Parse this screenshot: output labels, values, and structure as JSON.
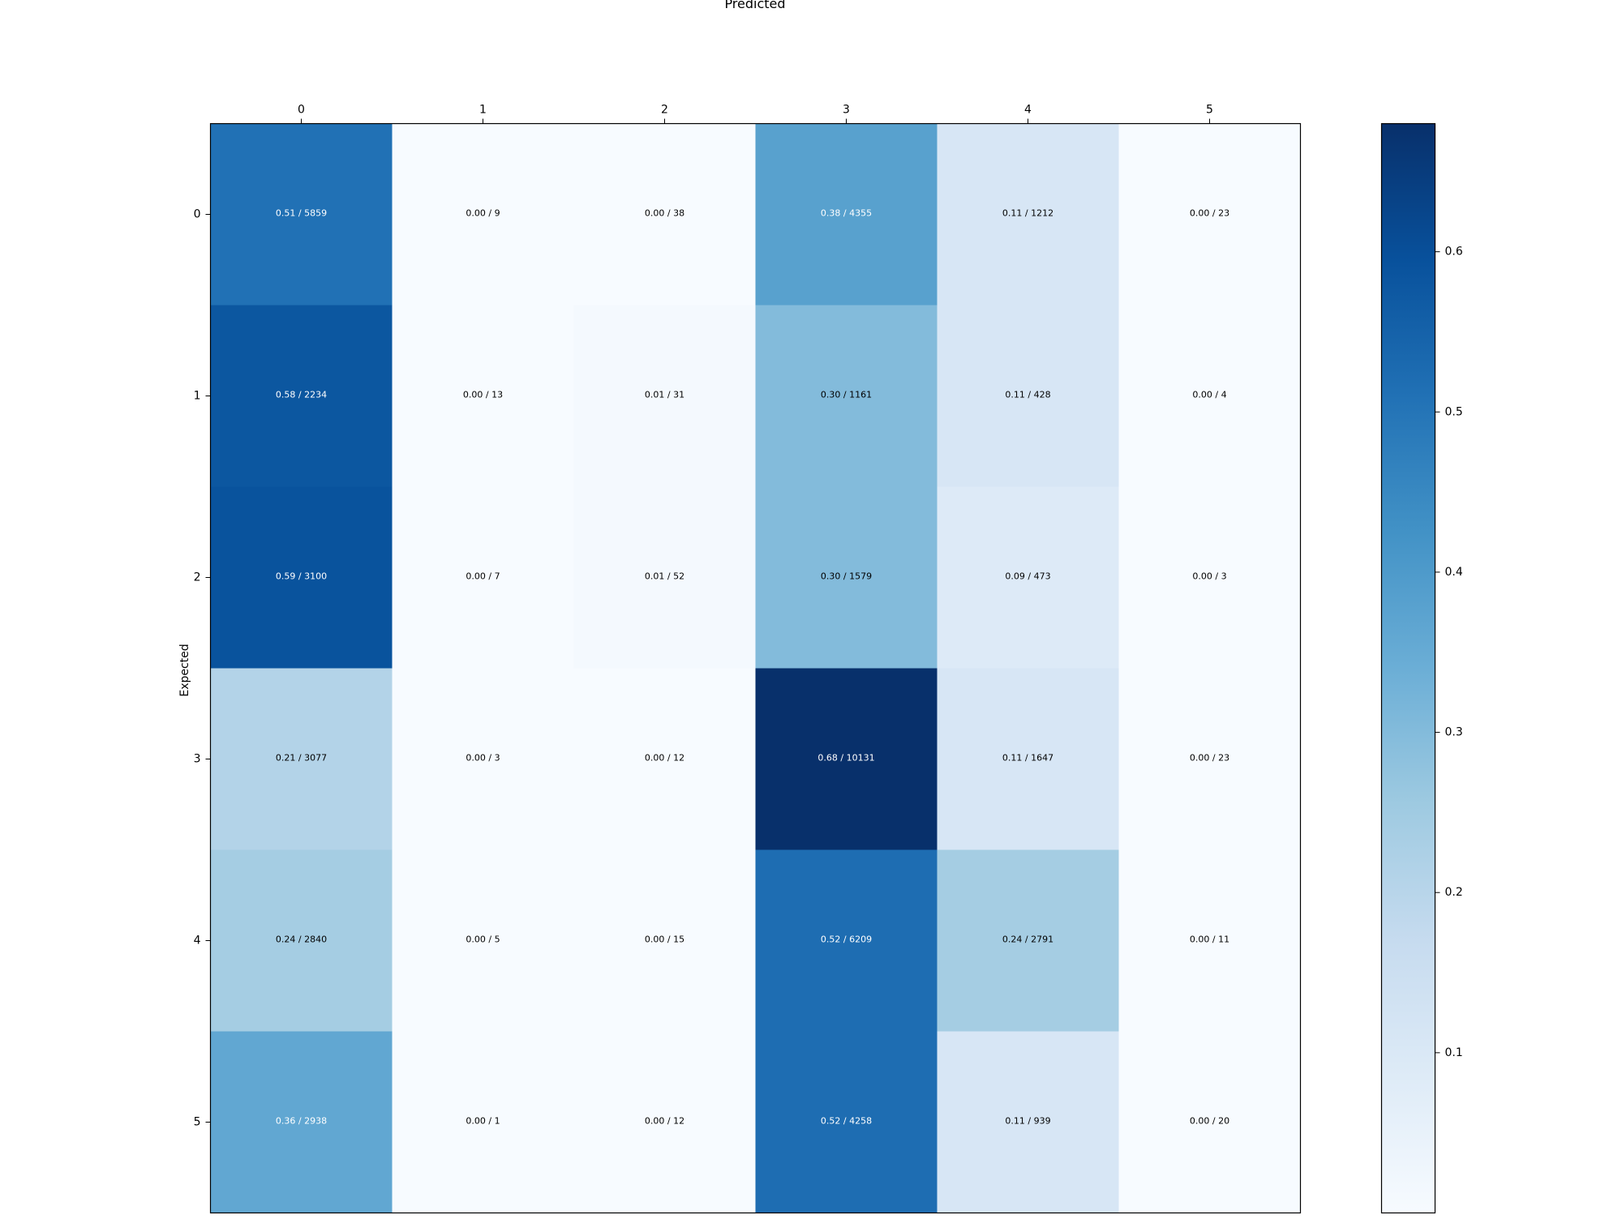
{
  "chart_data": {
    "type": "heatmap",
    "title": "Predicted",
    "xlabel": "Predicted",
    "ylabel": "Expected",
    "x_categories": [
      "0",
      "1",
      "2",
      "3",
      "4",
      "5"
    ],
    "y_categories": [
      "0",
      "1",
      "2",
      "3",
      "4",
      "5"
    ],
    "values": [
      [
        0.51,
        0.0,
        0.0,
        0.38,
        0.11,
        0.0
      ],
      [
        0.58,
        0.0,
        0.01,
        0.3,
        0.11,
        0.0
      ],
      [
        0.59,
        0.0,
        0.01,
        0.3,
        0.09,
        0.0
      ],
      [
        0.21,
        0.0,
        0.0,
        0.68,
        0.11,
        0.0
      ],
      [
        0.24,
        0.0,
        0.0,
        0.52,
        0.24,
        0.0
      ],
      [
        0.36,
        0.0,
        0.0,
        0.52,
        0.11,
        0.0
      ]
    ],
    "counts": [
      [
        5859,
        9,
        38,
        4355,
        1212,
        23
      ],
      [
        2234,
        13,
        31,
        1161,
        428,
        4
      ],
      [
        3100,
        7,
        52,
        1579,
        473,
        3
      ],
      [
        3077,
        3,
        12,
        10131,
        1647,
        23
      ],
      [
        2840,
        5,
        15,
        6209,
        2791,
        11
      ],
      [
        2938,
        1,
        12,
        4258,
        939,
        20
      ]
    ],
    "cell_labels": [
      [
        "0.51 / 5859",
        "0.00 / 9",
        "0.00 / 38",
        "0.38 / 4355",
        "0.11 / 1212",
        "0.00 / 23"
      ],
      [
        "0.58 / 2234",
        "0.00 / 13",
        "0.01 / 31",
        "0.30 / 1161",
        "0.11 / 428",
        "0.00 / 4"
      ],
      [
        "0.59 / 3100",
        "0.00 / 7",
        "0.01 / 52",
        "0.30 / 1579",
        "0.09 / 473",
        "0.00 / 3"
      ],
      [
        "0.21 / 3077",
        "0.00 / 3",
        "0.00 / 12",
        "0.68 / 10131",
        "0.11 / 1647",
        "0.00 / 23"
      ],
      [
        "0.24 / 2840",
        "0.00 / 5",
        "0.00 / 15",
        "0.52 / 6209",
        "0.24 / 2791",
        "0.00 / 11"
      ],
      [
        "0.36 / 2938",
        "0.00 / 1",
        "0.00 / 12",
        "0.52 / 4258",
        "0.11 / 939",
        "0.00 / 20"
      ]
    ],
    "colormap": "Blues",
    "colorbar": {
      "range": [
        0.0,
        0.68
      ],
      "ticks": [
        0.1,
        0.2,
        0.3,
        0.4,
        0.5,
        0.6
      ],
      "tick_labels": [
        "0.1",
        "0.2",
        "0.3",
        "0.4",
        "0.5",
        "0.6"
      ]
    },
    "x_axis_position": "top",
    "grid": false
  }
}
